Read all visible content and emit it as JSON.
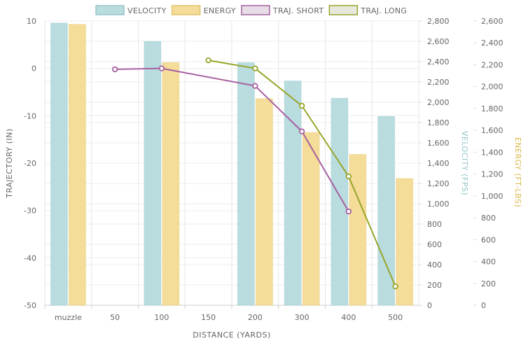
{
  "chart_data": {
    "type": "bar+line",
    "categories": [
      "muzzle",
      "50",
      "100",
      "150",
      "200",
      "300",
      "400",
      "500"
    ],
    "xlabel": "DISTANCE (YARDS)",
    "legend": [
      {
        "name": "VELOCITY",
        "color": "#b9dcdf",
        "border": "#97c7cb"
      },
      {
        "name": "ENERGY",
        "color": "#f4dc99",
        "border": "#e3c46a"
      },
      {
        "name": "TRAJ. SHORT",
        "color": "#e6dde6",
        "border": "#a760a0"
      },
      {
        "name": "TRAJ. LONG",
        "color": "#e8e8dc",
        "border": "#98a52a"
      }
    ],
    "series": [
      {
        "name": "VELOCITY",
        "kind": "bar",
        "axis": "velocity",
        "color": "#b9dcdf",
        "values": [
          2780,
          null,
          2600,
          null,
          2390,
          2210,
          2040,
          1860
        ]
      },
      {
        "name": "ENERGY",
        "kind": "bar",
        "axis": "energy",
        "color": "#f4dc99",
        "values": [
          2570,
          null,
          2220,
          null,
          1890,
          1580,
          1380,
          1160
        ]
      },
      {
        "name": "TRAJ. SHORT",
        "kind": "line",
        "axis": "trajectory",
        "color": "#a760a0",
        "values": [
          null,
          -0.2,
          0,
          null,
          -3.7,
          -13.3,
          -30.2,
          null
        ]
      },
      {
        "name": "TRAJ. LONG",
        "kind": "line",
        "axis": "trajectory",
        "color": "#98a52a",
        "values": [
          null,
          null,
          null,
          1.7,
          0,
          -7.9,
          -22.8,
          -46
        ]
      }
    ],
    "axes": {
      "trajectory": {
        "label": "TRAJECTORY (IN)",
        "range": [
          -50,
          10
        ],
        "ticks": [
          "10",
          "0",
          "-10",
          "-20",
          "-30",
          "-40",
          "-50"
        ],
        "color": "#666666"
      },
      "velocity": {
        "label": "VELOCITY (FPS)",
        "range": [
          0,
          2800
        ],
        "ticks": [
          "2,800",
          "2,600",
          "2,400",
          "2,200",
          "2,000",
          "1,800",
          "1,600",
          "1,400",
          "1,200",
          "1,000",
          "800",
          "600",
          "400",
          "200",
          "0"
        ],
        "color": "#8fc6ca"
      },
      "energy": {
        "label": "ENERGY (FT-LBS)",
        "range": [
          0,
          2600
        ],
        "ticks": [
          "2,600",
          "2,400",
          "2,200",
          "2,000",
          "1,800",
          "1,600",
          "1,400",
          "1,200",
          "1,000",
          "800",
          "600",
          "400",
          "200",
          "0"
        ],
        "color": "#d8b84a"
      }
    }
  }
}
